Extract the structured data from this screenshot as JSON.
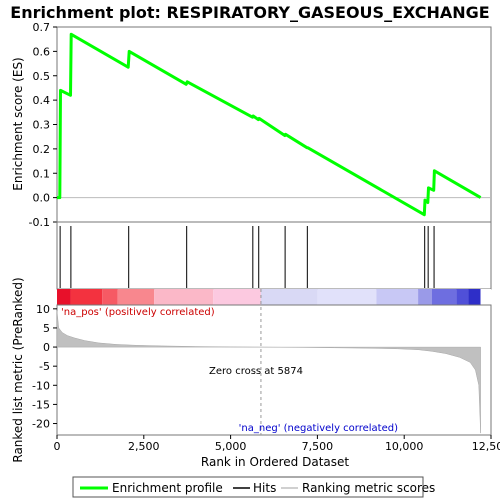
{
  "title": "Enrichment plot: RESPIRATORY_GASEOUS_EXCHANGE",
  "top_panel": {
    "ylabel": "Enrichment score (ES)",
    "y_ticks": [
      "-0.1",
      "0.0",
      "0.1",
      "0.2",
      "0.3",
      "0.4",
      "0.5",
      "0.6",
      "0.7"
    ]
  },
  "bottom_panel": {
    "ylabel": "Ranked list metric (PreRanked)",
    "y_ticks": [
      "-20",
      "-15",
      "-10",
      "-5",
      "0",
      "5",
      "10"
    ],
    "pos_label": "'na_pos' (positively correlated)",
    "neg_label": "'na_neg' (negatively correlated)",
    "zero_cross_label": "Zero cross at 5874"
  },
  "xlabel": "Rank in Ordered Dataset",
  "x_ticks": [
    "0",
    "2,500",
    "5,000",
    "7,500",
    "10,000",
    "12,500"
  ],
  "legend": {
    "items": [
      {
        "label": "Enrichment profile",
        "color": "#00ff00"
      },
      {
        "label": "Hits",
        "color": "#000000"
      },
      {
        "label": "Ranking metric scores",
        "color": "#c0c0c0"
      }
    ]
  },
  "chart_data": {
    "type": "line",
    "title": "Enrichment plot: RESPIRATORY_GASEOUS_EXCHANGE",
    "xlabel": "Rank in Ordered Dataset",
    "ylabel": "Enrichment score (ES)",
    "xlim": [
      0,
      12500
    ],
    "ylim": [
      -0.1,
      0.7
    ],
    "series": [
      {
        "name": "Enrichment profile",
        "color": "#00ff00",
        "x": [
          0,
          80,
          100,
          390,
          410,
          2050,
          2080,
          3720,
          3750,
          5630,
          5650,
          5800,
          5820,
          6560,
          6580,
          7200,
          7220,
          10580,
          10600,
          10680,
          10700,
          10850,
          10870,
          12200
        ],
        "y": [
          0.0,
          0.0,
          0.44,
          0.42,
          0.67,
          0.535,
          0.6,
          0.465,
          0.475,
          0.33,
          0.335,
          0.32,
          0.325,
          0.255,
          0.26,
          0.205,
          0.205,
          -0.07,
          -0.01,
          -0.02,
          0.04,
          0.03,
          0.11,
          0.0
        ]
      }
    ],
    "hits": [
      90,
      400,
      2065,
      3735,
      5640,
      5810,
      6570,
      7210,
      10590,
      10690,
      10860
    ],
    "ranking_metric": {
      "name": "Ranking metric scores",
      "ylim": [
        -23,
        11
      ],
      "zero_cross": 5874,
      "x": [
        0,
        50,
        150,
        300,
        500,
        800,
        1200,
        1700,
        2300,
        3000,
        4000,
        5000,
        5874,
        7000,
        8000,
        9000,
        9800,
        10400,
        10800,
        11200,
        11600,
        11900,
        12050,
        12150,
        12200
      ],
      "y": [
        9.5,
        5.0,
        3.8,
        3.0,
        2.4,
        1.7,
        1.1,
        0.7,
        0.45,
        0.3,
        0.15,
        0.05,
        0.0,
        -0.1,
        -0.2,
        -0.3,
        -0.45,
        -0.7,
        -1.1,
        -1.7,
        -2.7,
        -4.0,
        -6.0,
        -10.0,
        -22.5
      ]
    },
    "grid": false
  }
}
